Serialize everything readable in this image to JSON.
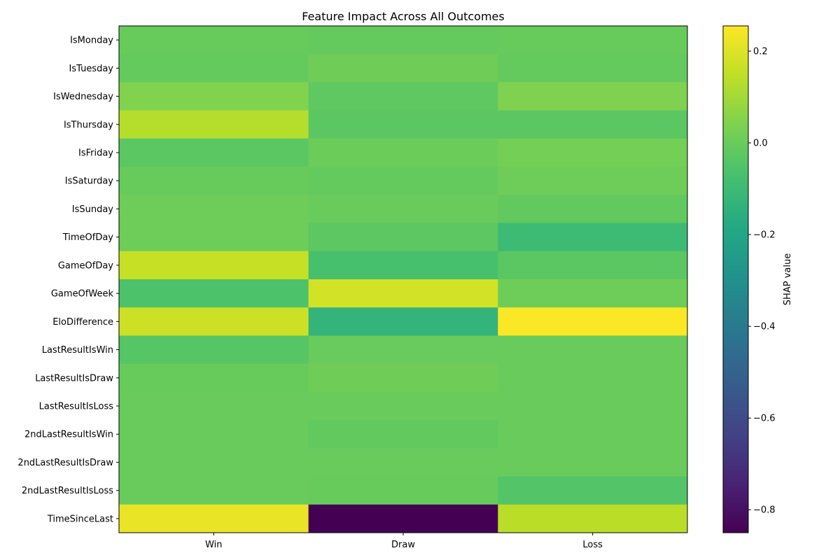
{
  "chart_data": {
    "type": "heatmap",
    "title": "Feature Impact Across All Outcomes",
    "xlabel": "",
    "ylabel": "",
    "columns": [
      "Win",
      "Draw",
      "Loss"
    ],
    "rows": [
      "IsMonday",
      "IsTuesday",
      "IsWednesday",
      "IsThursday",
      "IsFriday",
      "IsSaturday",
      "IsSunday",
      "TimeOfDay",
      "GameOfDay",
      "GameOfWeek",
      "EloDifference",
      "LastResultIsWin",
      "LastResultIsDraw",
      "LastResultIsLoss",
      "2ndLastResultIsWin",
      "2ndLastResultIsDraw",
      "2ndLastResultIsLoss",
      "TimeSinceLast"
    ],
    "values": [
      [
        -0.005,
        -0.008,
        -0.005
      ],
      [
        -0.01,
        0.012,
        -0.008
      ],
      [
        0.045,
        -0.02,
        0.04
      ],
      [
        0.13,
        -0.03,
        -0.03
      ],
      [
        -0.03,
        0.005,
        0.02
      ],
      [
        -0.005,
        -0.01,
        0.01
      ],
      [
        0.01,
        0.0,
        -0.015
      ],
      [
        0.01,
        -0.025,
        -0.1
      ],
      [
        0.16,
        -0.07,
        -0.03
      ],
      [
        -0.06,
        0.18,
        0.01
      ],
      [
        0.17,
        -0.13,
        0.25
      ],
      [
        -0.04,
        0.0,
        0.0
      ],
      [
        -0.005,
        0.012,
        -0.002
      ],
      [
        -0.003,
        -0.003,
        -0.002
      ],
      [
        -0.003,
        -0.015,
        0.0
      ],
      [
        0.0,
        0.0,
        0.0
      ],
      [
        0.0,
        -0.005,
        -0.045
      ],
      [
        0.22,
        -0.85,
        0.14
      ]
    ],
    "colorbar": {
      "label": "SHAP value",
      "vmin": -0.85,
      "vmax": 0.255,
      "ticks": [
        0.2,
        0.0,
        -0.2,
        -0.4,
        -0.6,
        -0.8
      ],
      "tick_labels": [
        "0.2",
        "0.0",
        "−0.2",
        "−0.4",
        "−0.6",
        "−0.8"
      ],
      "colormap": "viridis"
    }
  }
}
